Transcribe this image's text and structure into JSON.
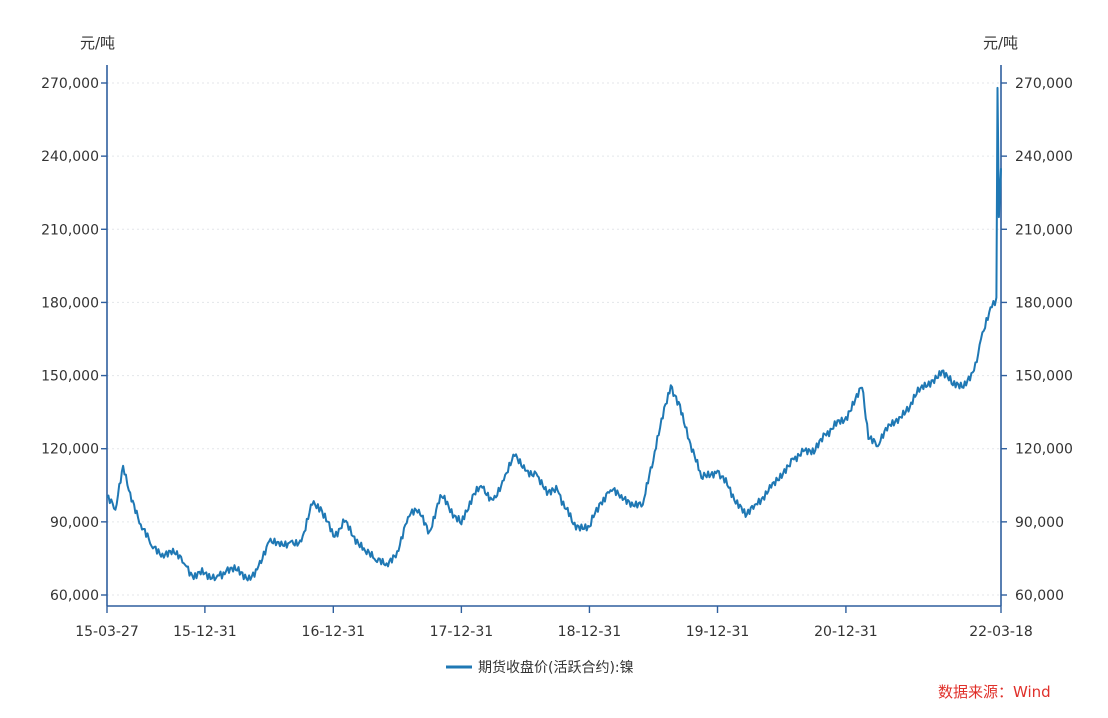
{
  "chart_data": {
    "type": "line",
    "y_unit_left": "元/吨",
    "y_unit_right": "元/吨",
    "ylim": [
      60000,
      270000
    ],
    "yticks": [
      "60,000",
      "90,000",
      "120,000",
      "150,000",
      "180,000",
      "210,000",
      "240,000",
      "270,000"
    ],
    "ytick_values": [
      60000,
      90000,
      120000,
      150000,
      180000,
      210000,
      240000,
      270000
    ],
    "xlim": [
      "2015-03-27",
      "2022-03-18"
    ],
    "xticks": [
      "15-03-27",
      "15-12-31",
      "16-12-31",
      "17-12-31",
      "18-12-31",
      "19-12-31",
      "20-12-31",
      "22-03-18"
    ],
    "xtick_dates": [
      "2015-03-27",
      "2015-12-31",
      "2016-12-31",
      "2017-12-31",
      "2018-12-31",
      "2019-12-31",
      "2020-12-31",
      "2022-03-18"
    ],
    "grid": true,
    "legend_position": "bottom-center",
    "source": "数据来源：Wind",
    "series": [
      {
        "name": "期货收盘价(活跃合约):镍",
        "color": "#1f78b4",
        "points": [
          [
            "2015-03-27",
            100000
          ],
          [
            "2015-04-20",
            95000
          ],
          [
            "2015-05-12",
            113000
          ],
          [
            "2015-06-01",
            102000
          ],
          [
            "2015-07-01",
            89000
          ],
          [
            "2015-08-01",
            80000
          ],
          [
            "2015-09-01",
            77000
          ],
          [
            "2015-10-01",
            79000
          ],
          [
            "2015-11-01",
            73000
          ],
          [
            "2015-11-25",
            68000
          ],
          [
            "2015-12-31",
            69000
          ],
          [
            "2016-02-01",
            67000
          ],
          [
            "2016-03-01",
            70000
          ],
          [
            "2016-04-01",
            70000
          ],
          [
            "2016-05-01",
            66000
          ],
          [
            "2016-06-01",
            72000
          ],
          [
            "2016-07-01",
            82000
          ],
          [
            "2016-08-01",
            80000
          ],
          [
            "2016-09-01",
            82000
          ],
          [
            "2016-10-01",
            82000
          ],
          [
            "2016-11-01",
            97000
          ],
          [
            "2016-11-25",
            96000
          ],
          [
            "2016-12-31",
            84000
          ],
          [
            "2017-02-01",
            90000
          ],
          [
            "2017-03-01",
            84000
          ],
          [
            "2017-04-01",
            78000
          ],
          [
            "2017-05-01",
            74000
          ],
          [
            "2017-06-01",
            73000
          ],
          [
            "2017-07-01",
            78000
          ],
          [
            "2017-08-01",
            92000
          ],
          [
            "2017-09-01",
            95000
          ],
          [
            "2017-10-01",
            86000
          ],
          [
            "2017-11-01",
            101000
          ],
          [
            "2017-12-31",
            89000
          ],
          [
            "2018-02-01",
            101000
          ],
          [
            "2018-03-01",
            104000
          ],
          [
            "2018-04-01",
            99000
          ],
          [
            "2018-05-01",
            107000
          ],
          [
            "2018-06-01",
            117000
          ],
          [
            "2018-07-01",
            111000
          ],
          [
            "2018-08-01",
            110000
          ],
          [
            "2018-09-01",
            101000
          ],
          [
            "2018-10-01",
            103000
          ],
          [
            "2018-11-15",
            89000
          ],
          [
            "2018-12-31",
            88000
          ],
          [
            "2019-02-01",
            98000
          ],
          [
            "2019-03-01",
            103000
          ],
          [
            "2019-04-01",
            101000
          ],
          [
            "2019-05-01",
            98000
          ],
          [
            "2019-06-01",
            97000
          ],
          [
            "2019-07-01",
            115000
          ],
          [
            "2019-08-01",
            137000
          ],
          [
            "2019-08-20",
            146000
          ],
          [
            "2019-09-15",
            138000
          ],
          [
            "2019-10-15",
            122000
          ],
          [
            "2019-11-15",
            108000
          ],
          [
            "2019-12-31",
            111000
          ],
          [
            "2020-02-01",
            104000
          ],
          [
            "2020-03-20",
            92000
          ],
          [
            "2020-04-15",
            97000
          ],
          [
            "2020-06-01",
            104000
          ],
          [
            "2020-07-01",
            108000
          ],
          [
            "2020-08-01",
            116000
          ],
          [
            "2020-09-01",
            119000
          ],
          [
            "2020-10-01",
            118000
          ],
          [
            "2020-11-01",
            126000
          ],
          [
            "2020-12-31",
            133000
          ],
          [
            "2021-02-15",
            145000
          ],
          [
            "2021-03-05",
            124000
          ],
          [
            "2021-04-01",
            121000
          ],
          [
            "2021-05-01",
            130000
          ],
          [
            "2021-06-01",
            133000
          ],
          [
            "2021-07-01",
            137000
          ],
          [
            "2021-08-01",
            145000
          ],
          [
            "2021-09-01",
            148000
          ],
          [
            "2021-10-01",
            152000
          ],
          [
            "2021-11-01",
            146000
          ],
          [
            "2021-12-01",
            145000
          ],
          [
            "2021-12-31",
            152000
          ],
          [
            "2022-01-20",
            165000
          ],
          [
            "2022-02-20",
            178000
          ],
          [
            "2022-03-05",
            182000
          ],
          [
            "2022-03-08",
            268000
          ],
          [
            "2022-03-12",
            215000
          ],
          [
            "2022-03-18",
            235000
          ]
        ]
      }
    ]
  }
}
